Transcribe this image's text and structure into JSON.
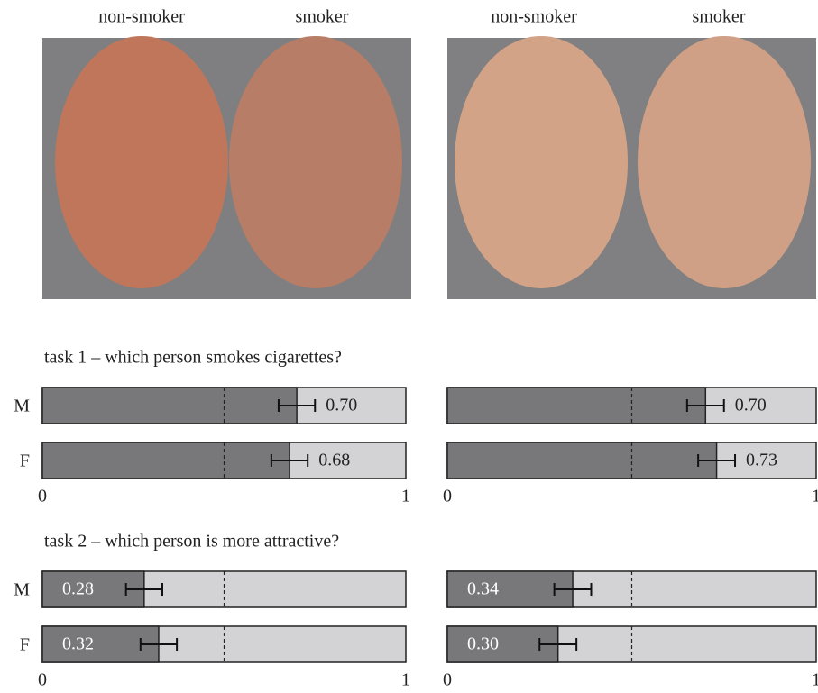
{
  "faces": {
    "labels": [
      "non-smoker",
      "smoker",
      "non-smoker",
      "smoker"
    ]
  },
  "chart_data": [
    {
      "type": "hbar",
      "title": "task 1 – which person smokes cigarettes?",
      "categories": [
        "M",
        "F"
      ],
      "values": [
        0.7,
        0.68
      ],
      "value_labels": [
        "0.70",
        "0.68"
      ],
      "errors": [
        0.05,
        0.05
      ],
      "label_position": "outside",
      "color": "#78787a",
      "background": "#d3d3d5",
      "reference_line": 0.5,
      "xlim": [
        0,
        1
      ],
      "xticks": [
        0,
        1
      ]
    },
    {
      "type": "hbar",
      "categories": [
        null,
        null
      ],
      "values": [
        0.7,
        0.73
      ],
      "value_labels": [
        "0.70",
        "0.73"
      ],
      "errors": [
        0.05,
        0.05
      ],
      "label_position": "outside",
      "color": "#78787a",
      "background": "#d3d3d5",
      "reference_line": 0.5,
      "xlim": [
        0,
        1
      ],
      "xticks": [
        0,
        1
      ]
    },
    {
      "type": "hbar",
      "title": "task 2 – which person is more attractive?",
      "categories": [
        "M",
        "F"
      ],
      "values": [
        0.28,
        0.32
      ],
      "value_labels": [
        "0.28",
        "0.32"
      ],
      "errors": [
        0.05,
        0.05
      ],
      "label_position": "inside",
      "color": "#78787a",
      "background": "#d3d3d5",
      "reference_line": 0.5,
      "xlim": [
        0,
        1
      ],
      "xticks": [
        0,
        1
      ]
    },
    {
      "type": "hbar",
      "categories": [
        null,
        null
      ],
      "values": [
        0.34,
        0.3
      ],
      "value_labels": [
        "0.34",
        "0.30"
      ],
      "errors": [
        0.05,
        0.05
      ],
      "label_position": "inside",
      "color": "#78787a",
      "background": "#d3d3d5",
      "reference_line": 0.5,
      "xlim": [
        0,
        1
      ],
      "xticks": [
        0,
        1
      ]
    }
  ]
}
